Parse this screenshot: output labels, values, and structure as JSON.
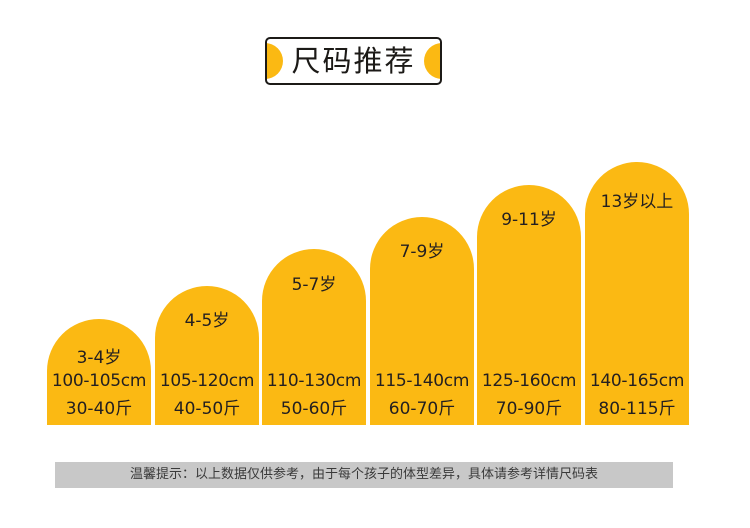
{
  "title": "尺码推荐",
  "colors": {
    "accent": "#fbb913",
    "text": "#231f20",
    "note_background": "#c8c8c8"
  },
  "sizes": [
    {
      "age": "3-4岁",
      "height": "100-105cm",
      "weight": "30-40斤"
    },
    {
      "age": "4-5岁",
      "height": "105-120cm",
      "weight": "40-50斤"
    },
    {
      "age": "5-7岁",
      "height": "110-130cm",
      "weight": "50-60斤"
    },
    {
      "age": "7-9岁",
      "height": "115-140cm",
      "weight": "60-70斤"
    },
    {
      "age": "9-11岁",
      "height": "125-160cm",
      "weight": "70-90斤"
    },
    {
      "age": "13岁以上",
      "height": "140-165cm",
      "weight": "80-115斤"
    }
  ],
  "note": "温馨提示：以上数据仅供参考，由于每个孩子的体型差异，具体请参考详情尺码表"
}
